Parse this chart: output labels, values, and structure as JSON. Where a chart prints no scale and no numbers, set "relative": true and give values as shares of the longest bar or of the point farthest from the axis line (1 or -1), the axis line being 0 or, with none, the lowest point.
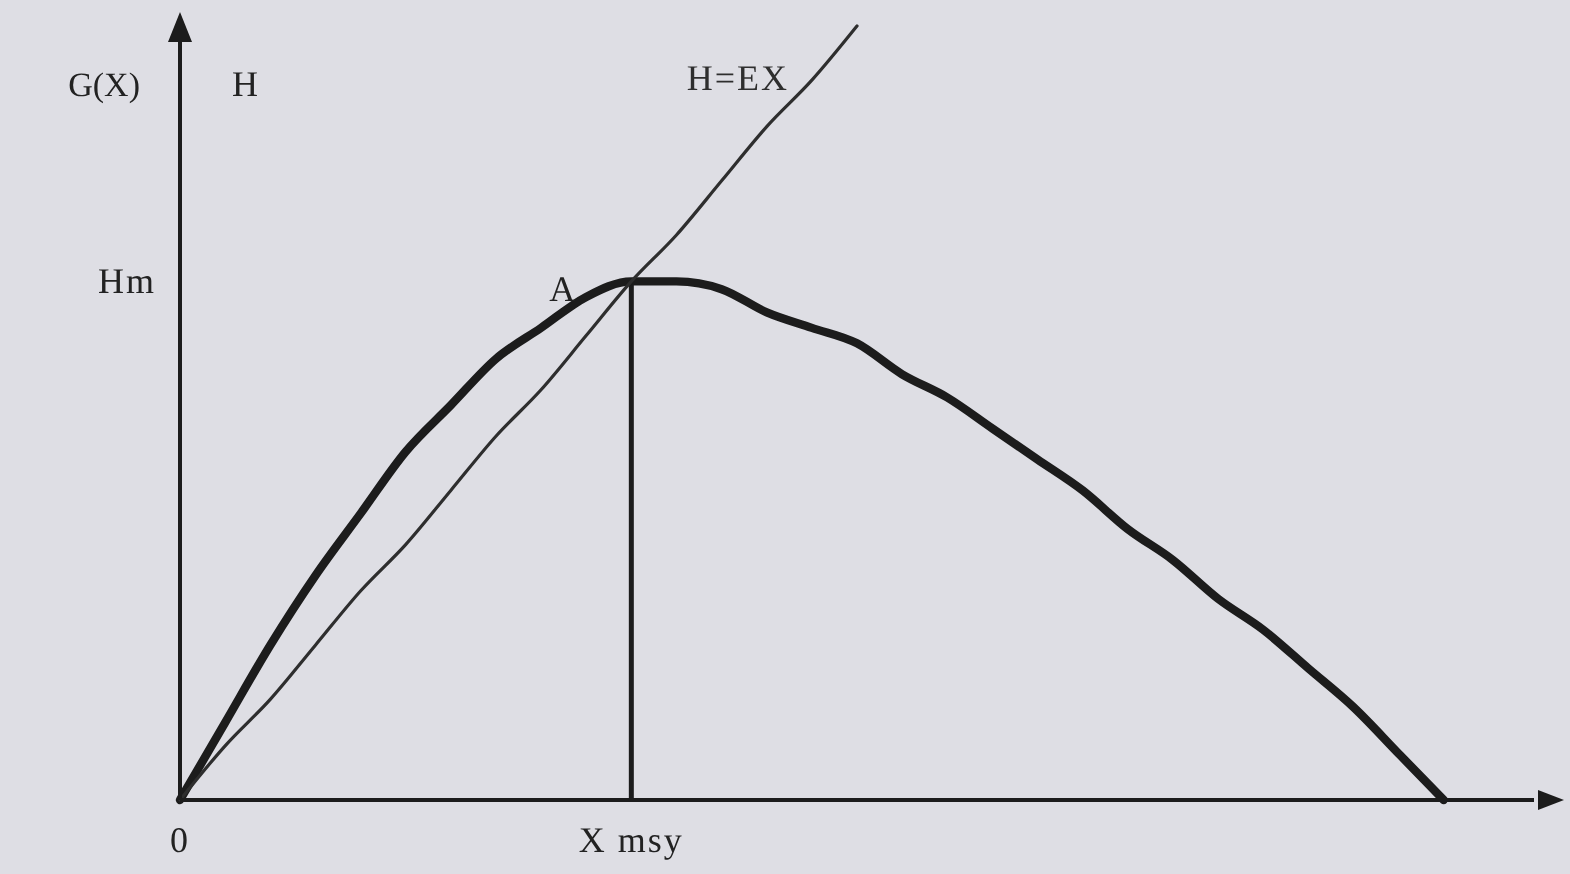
{
  "chart_data": {
    "type": "line",
    "relative": true,
    "ylabel": "G(X)",
    "categories": [
      "0",
      null,
      null,
      null,
      null,
      null,
      null,
      null,
      null,
      null,
      "X msy",
      null,
      null,
      null,
      null,
      null,
      null,
      null,
      null,
      null,
      null,
      null,
      null,
      null,
      null,
      null,
      null,
      null,
      null,
      null,
      null
    ],
    "series": [
      {
        "color": "#1c1c1c",
        "values": [
          0,
          0.1,
          0.2,
          0.29,
          0.37,
          0.45,
          0.51,
          0.57,
          0.61,
          0.65,
          0.67,
          0.67,
          0.66,
          0.63,
          0.61,
          0.59,
          0.55,
          0.52,
          0.48,
          0.44,
          0.4,
          0.35,
          0.31,
          0.26,
          0.22,
          0.17,
          0.12,
          0.06,
          0,
          null,
          null
        ]
      },
      {
        "name": "H=EX",
        "color": "#2e2e2e",
        "values": [
          0,
          0.07,
          0.13,
          0.2,
          0.27,
          0.33,
          0.4,
          0.47,
          0.53,
          0.6,
          0.67,
          0.73,
          0.8,
          0.87,
          0.93,
          1,
          null,
          null,
          null,
          null,
          null,
          null,
          null,
          null,
          null,
          null,
          null,
          null,
          null,
          null,
          null
        ]
      }
    ],
    "ref_lines": [
      {
        "axis": "x",
        "value": "X msy",
        "color": "#1c1c1c"
      }
    ],
    "annotations": [
      "H",
      "Hm",
      {
        "text": "A",
        "x": "X msy",
        "y": 0.67
      }
    ],
    "legend": false
  }
}
